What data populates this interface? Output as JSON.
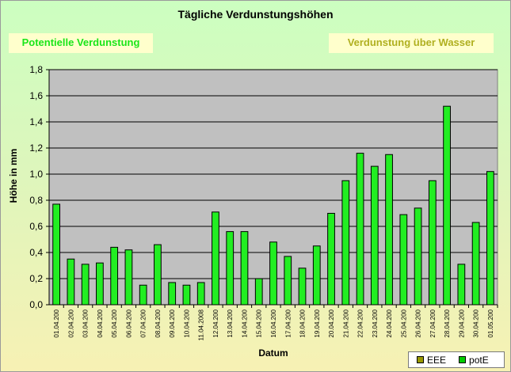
{
  "title": "Tägliche Verdunstungshöhen",
  "tabs": {
    "potential": "Potentielle Verdunstung",
    "water": "Verdunstung über Wasser"
  },
  "colors": {
    "bar_fill": "#22ee22",
    "plot_background": "#c0c0c0",
    "tab_background": "#ffffcc",
    "eee_swatch": "#999900",
    "pote_swatch": "#00cc00"
  },
  "chart_data": {
    "type": "bar",
    "title": "Tägliche Verdunstungshöhen",
    "xlabel": "Datum",
    "ylabel": "Höhe in mm",
    "ylim": [
      0,
      1.8
    ],
    "yticks": [
      "0,0",
      "0,2",
      "0,4",
      "0,6",
      "0,8",
      "1,0",
      "1,2",
      "1,4",
      "1,6",
      "1,8"
    ],
    "grid": true,
    "legend_position": "bottom-right",
    "categories": [
      "01.04.200",
      "02.04.200",
      "03.04.200",
      "04.04.200",
      "05.04.200",
      "06.04.200",
      "07.04.200",
      "08.04.200",
      "09.04.200",
      "10.04.200",
      "11.04.2008",
      "12.04.200",
      "13.04.200",
      "14.04.200",
      "15.04.200",
      "16.04.200",
      "17.04.200",
      "18.04.200",
      "19.04.200",
      "20.04.200",
      "21.04.200",
      "22.04.200",
      "23.04.200",
      "24.04.200",
      "25.04.200",
      "26.04.200",
      "27.04.200",
      "28.04.200",
      "29.04.200",
      "30.04.200",
      "01.05.200"
    ],
    "series": [
      {
        "name": "potE",
        "values": [
          0.77,
          0.35,
          0.31,
          0.32,
          0.44,
          0.42,
          0.15,
          0.46,
          0.17,
          0.15,
          0.17,
          0.71,
          0.56,
          0.56,
          0.2,
          0.48,
          0.37,
          0.28,
          0.45,
          0.7,
          0.95,
          1.16,
          1.06,
          1.15,
          0.69,
          0.74,
          0.95,
          1.52,
          0.31,
          0.63,
          1.02
        ]
      }
    ],
    "legend": [
      "EEE",
      "potE"
    ]
  }
}
